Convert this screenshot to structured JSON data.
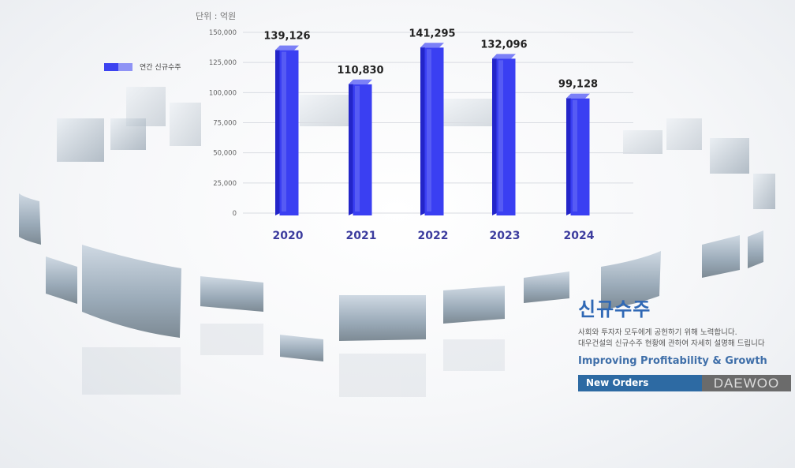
{
  "chart_data": {
    "type": "bar",
    "title": "",
    "unit_label": "단위 : 억원",
    "categories": [
      "2020",
      "2021",
      "2022",
      "2023",
      "2024"
    ],
    "series": [
      {
        "name": "연간 신규수주",
        "values": [
          139126,
          110830,
          141295,
          132096,
          99128
        ]
      }
    ],
    "data_labels": [
      "139,126",
      "110,830",
      "141,295",
      "132,096",
      "99,128"
    ],
    "y_ticks": [
      0,
      25000,
      50000,
      75000,
      100000,
      125000,
      150000
    ],
    "y_tick_labels": [
      "0",
      "25,000",
      "50,000",
      "75,000",
      "100,000",
      "125,000",
      "150,000"
    ],
    "ylim": [
      0,
      150000
    ],
    "grid": true,
    "legend_position": "left",
    "colors": {
      "bar_front": "#3a3ff2",
      "bar_side": "#2325c9",
      "bar_top": "#7b80f7",
      "label": "#222222",
      "category": "#3c3c9e"
    }
  },
  "panel": {
    "title": "신규수주",
    "desc_line1": "사회와 투자자 모두에게 공헌하기 위해 노력합니다.",
    "desc_line2": "대우건설의 신규수주 현황에 관하여 자세히 설명해 드립니다",
    "subtitle": "Improving Profitability & Growth",
    "bar_label": "New Orders",
    "brand": "DAEWOO"
  }
}
